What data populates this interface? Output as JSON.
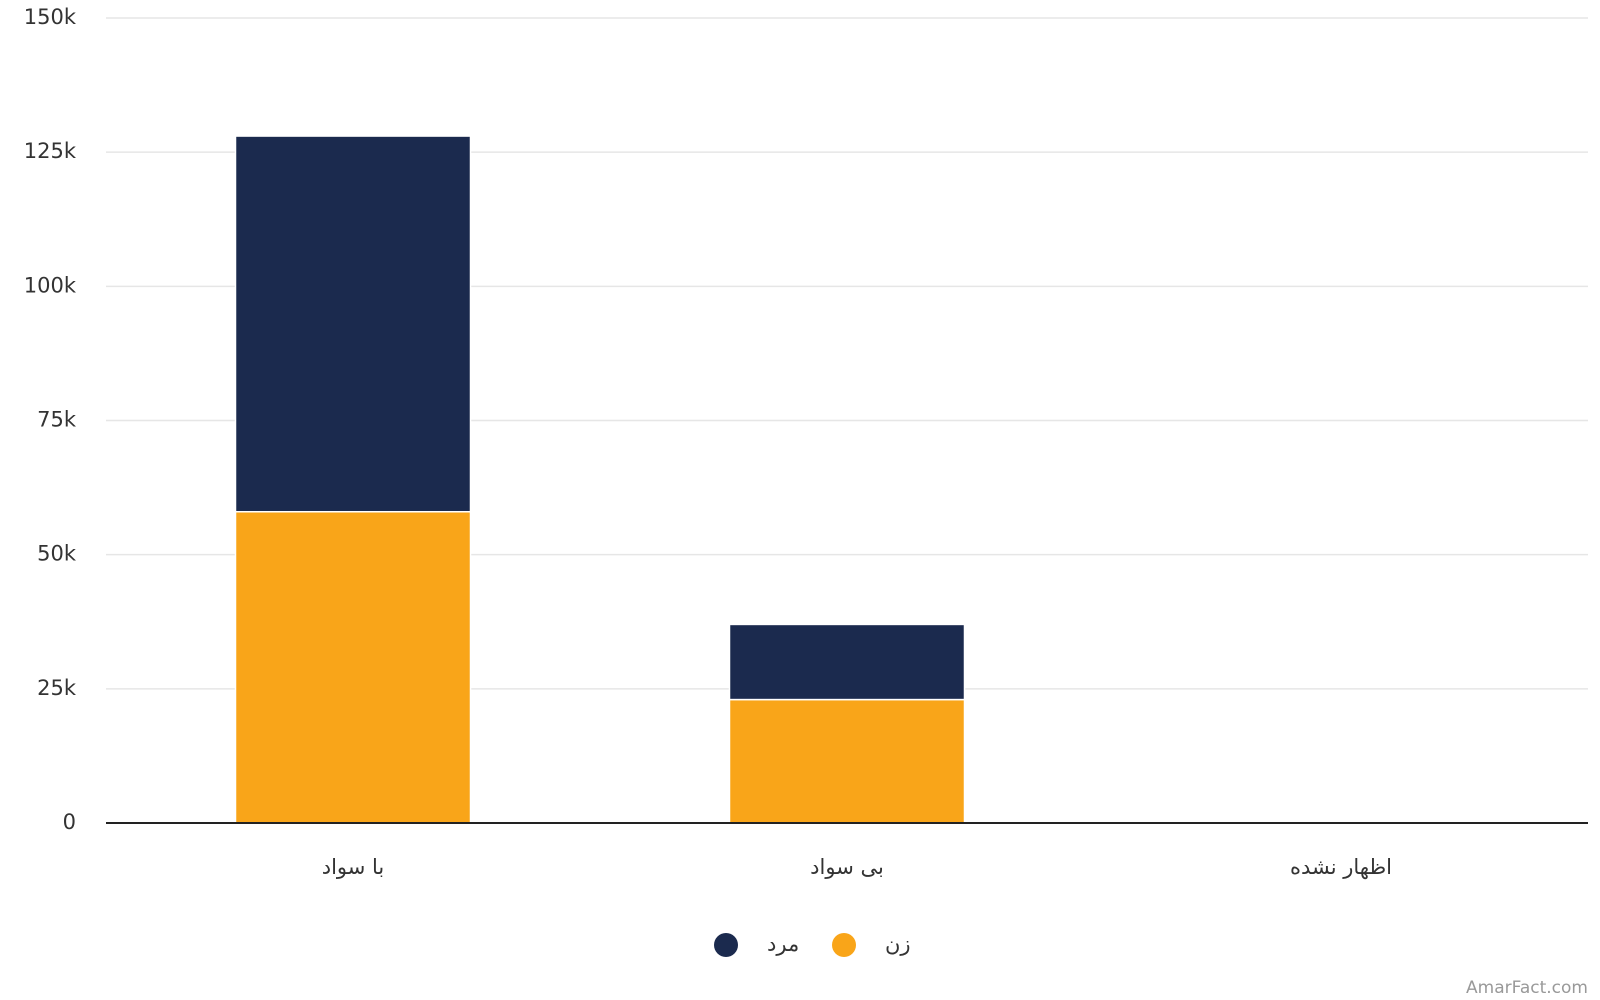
{
  "chart_data": {
    "type": "stacked_bar",
    "categories": [
      "با سواد",
      "بی سواد",
      "اظهار نشده"
    ],
    "series": [
      {
        "name": "زن",
        "color": "#f9a519",
        "values": [
          58000,
          23000,
          0
        ]
      },
      {
        "name": "مرد",
        "color": "#1b2a4e",
        "values": [
          70000,
          14000,
          0
        ]
      }
    ],
    "ylim": [
      0,
      150000
    ],
    "yticks": [
      0,
      {
        "value": 25000,
        "label": "25k"
      },
      {
        "value": 50000,
        "label": "50k"
      },
      {
        "value": 75000,
        "label": "75k"
      },
      {
        "value": 100000,
        "label": "100k"
      },
      {
        "value": 125000,
        "label": "125k"
      },
      {
        "value": 150000,
        "label": "150k"
      }
    ],
    "grid": true,
    "legend": "bottom",
    "watermark": "AmarFact.com"
  }
}
